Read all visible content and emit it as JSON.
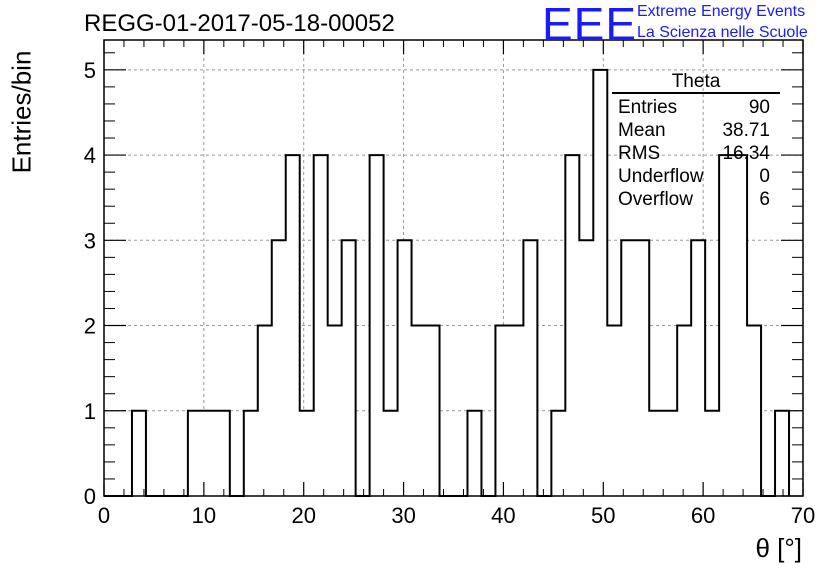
{
  "header": {
    "run_title": "REGG-01-2017-05-18-00052",
    "logo_text": "EEE",
    "logo_line1": "Extreme Energy Events",
    "logo_line2": "La Scienza nelle Scuole",
    "logo_color": "#1a1aff"
  },
  "stats_box": {
    "title": "Theta",
    "rows": [
      {
        "label": "Entries",
        "value": "90"
      },
      {
        "label": "Mean",
        "value": "38.71"
      },
      {
        "label": "RMS",
        "value": "16.34"
      },
      {
        "label": "Underflow",
        "value": "0"
      },
      {
        "label": "Overflow",
        "value": "6"
      }
    ]
  },
  "chart_data": {
    "type": "bar",
    "style": "step-histogram",
    "title": "REGG-01-2017-05-18-00052",
    "xlabel": "θ [°]",
    "ylabel": "Entries/bin",
    "xlim": [
      0,
      70
    ],
    "ylim": [
      0,
      5.35
    ],
    "grid": true,
    "x_ticks": [
      "0",
      "10",
      "20",
      "30",
      "40",
      "50",
      "60",
      "70"
    ],
    "y_ticks": [
      "0",
      "1",
      "2",
      "3",
      "4",
      "5"
    ],
    "bin_width": 1.4,
    "values": [
      0,
      0,
      1,
      0,
      0,
      0,
      1,
      1,
      1,
      0,
      1,
      2,
      3,
      4,
      1,
      4,
      2,
      3,
      0,
      4,
      1,
      3,
      2,
      2,
      0,
      0,
      1,
      0,
      2,
      2,
      3,
      0,
      1,
      4,
      3,
      5,
      2,
      3,
      3,
      1,
      1,
      2,
      3,
      1,
      4,
      4,
      2,
      0,
      1
    ]
  }
}
